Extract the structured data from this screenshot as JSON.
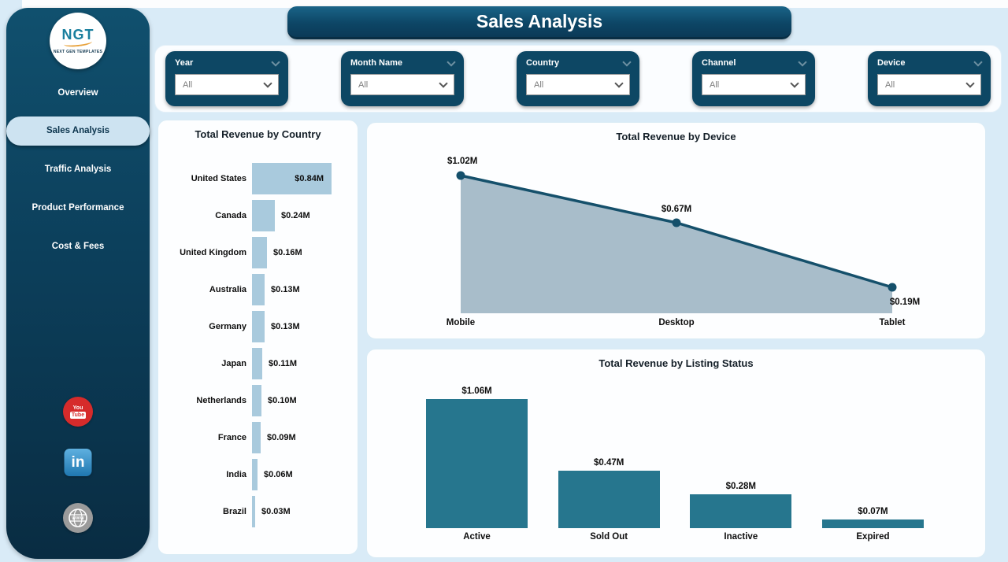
{
  "page": {
    "title": "Sales Analysis"
  },
  "sidebar": {
    "logo": {
      "text": "NGT",
      "subtext": "NEXT GEN TEMPLATES"
    },
    "items": [
      {
        "label": "Overview",
        "active": false
      },
      {
        "label": "Sales Analysis",
        "active": true
      },
      {
        "label": "Traffic Analysis",
        "active": false
      },
      {
        "label": "Product Performance",
        "active": false
      },
      {
        "label": "Cost & Fees",
        "active": false
      }
    ],
    "social": [
      "youtube",
      "linkedin",
      "website-globe"
    ]
  },
  "filters": [
    {
      "label": "Year",
      "value": "All"
    },
    {
      "label": "Month Name",
      "value": "All"
    },
    {
      "label": "Country",
      "value": "All"
    },
    {
      "label": "Channel",
      "value": "All"
    },
    {
      "label": "Device",
      "value": "All"
    }
  ],
  "colors": {
    "sidebar_dark_teal": "#0d4764",
    "page_background": "#d9ebf7",
    "country_bar": "#a9cadd",
    "listing_bar": "#26768e",
    "device_line": "#15506b",
    "device_fill": "#a8bdca",
    "active_pill": "#cde3f1",
    "youtube_red": "#d62b2b",
    "linkedin_blue": "#2e86c1"
  },
  "chart_data": [
    {
      "type": "bar",
      "orientation": "horizontal",
      "title": "Total Revenue by Country",
      "categories": [
        "United States",
        "Canada",
        "United Kingdom",
        "Australia",
        "Germany",
        "Japan",
        "Netherlands",
        "France",
        "India",
        "Brazil"
      ],
      "values": [
        0.84,
        0.24,
        0.16,
        0.13,
        0.13,
        0.11,
        0.1,
        0.09,
        0.06,
        0.03
      ],
      "labels": [
        "$0.84M",
        "$0.24M",
        "$0.16M",
        "$0.13M",
        "$0.13M",
        "$0.11M",
        "$0.10M",
        "$0.09M",
        "$0.06M",
        "$0.03M"
      ],
      "unit": "$M",
      "bar_color": "#a9cadd",
      "grid": false,
      "legend": false
    },
    {
      "type": "area",
      "title": "Total Revenue by Device",
      "categories": [
        "Mobile",
        "Desktop",
        "Tablet"
      ],
      "values": [
        1.02,
        0.67,
        0.19
      ],
      "labels": [
        "$1.02M",
        "$0.67M",
        "$0.19M"
      ],
      "unit": "$M",
      "line_color": "#15506b",
      "fill_color": "#a8bdca",
      "marker_color": "#15506b",
      "grid": false,
      "legend": false
    },
    {
      "type": "bar",
      "orientation": "vertical",
      "title": "Total Revenue by Listing Status",
      "categories": [
        "Active",
        "Sold Out",
        "Inactive",
        "Expired"
      ],
      "values": [
        1.06,
        0.47,
        0.28,
        0.07
      ],
      "labels": [
        "$1.06M",
        "$0.47M",
        "$0.28M",
        "$0.07M"
      ],
      "unit": "$M",
      "bar_color": "#26768e",
      "grid": false,
      "legend": false
    }
  ]
}
